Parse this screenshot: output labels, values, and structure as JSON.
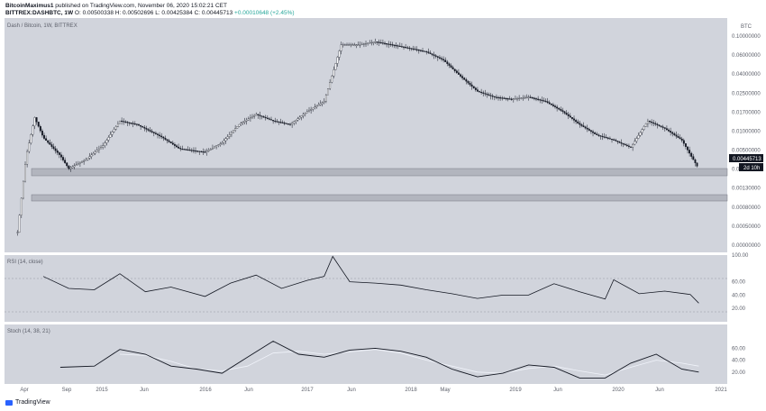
{
  "header": {
    "author": "BitcoinMaximus1",
    "published": "published on TradingView.com, November 06, 2020 15:02:21 CET",
    "symbol": "BITTREX:DASHBTC, 1W",
    "ohlc": "O: 0.00500338 H: 0.00502696 L: 0.00425384 C: 0.00445713",
    "change": "+0.00010648 (+2.45%)"
  },
  "footer": {
    "brand": "TradingView"
  },
  "chart_data": [
    {
      "type": "candlestick",
      "title": "Dash / Bitcoin, 1W, BITTREX",
      "axis_unit": "BTC",
      "scale": "log",
      "price_ticks": [
        "0.10000000",
        "0.06000000",
        "0.04000000",
        "0.02500000",
        "0.01700000",
        "0.01000000",
        "0.00500000",
        "0.00300000",
        "0.00130000",
        "0.00080000",
        "0.00050000",
        "0.00000000"
      ],
      "last_price": "0.00445713",
      "countdown": "2d 10h",
      "support_zones": [
        [
          0.0034,
          0.0039
        ],
        [
          0.0011,
          0.00135
        ]
      ],
      "x_labels": [
        "Apr",
        "Sep",
        "2015",
        "Jun",
        "2016",
        "Jun",
        "2017",
        "Jun",
        "2018",
        "May",
        "2019",
        "Jun",
        "2020",
        "Jun",
        "2021"
      ],
      "close_path": {
        "x": [
          "2014-03",
          "2014-04",
          "2014-05",
          "2014-06",
          "2014-08",
          "2014-09",
          "2014-11",
          "2015-01",
          "2015-03",
          "2015-05",
          "2015-08",
          "2015-10",
          "2016-01",
          "2016-03",
          "2016-05",
          "2016-07",
          "2016-09",
          "2016-11",
          "2017-01",
          "2017-03",
          "2017-05",
          "2017-07",
          "2017-09",
          "2017-11",
          "2018-01",
          "2018-03",
          "2018-05",
          "2018-07",
          "2018-09",
          "2018-11",
          "2019-01",
          "2019-03",
          "2019-05",
          "2019-07",
          "2019-09",
          "2019-11",
          "2020-01",
          "2020-03",
          "2020-05",
          "2020-07",
          "2020-09",
          "2020-11"
        ],
        "y": [
          0.0011,
          0.006,
          0.014,
          0.009,
          0.006,
          0.0045,
          0.0055,
          0.0075,
          0.013,
          0.012,
          0.009,
          0.007,
          0.0065,
          0.008,
          0.012,
          0.015,
          0.013,
          0.012,
          0.016,
          0.02,
          0.07,
          0.07,
          0.075,
          0.07,
          0.065,
          0.06,
          0.05,
          0.035,
          0.025,
          0.022,
          0.021,
          0.022,
          0.02,
          0.016,
          0.012,
          0.0095,
          0.0085,
          0.0072,
          0.013,
          0.011,
          0.0085,
          0.00445713
        ]
      }
    },
    {
      "type": "line",
      "title": "RSI (14, close)",
      "y_ticks": [
        "100.00",
        "60.00",
        "40.00",
        "20.00"
      ],
      "ylim": [
        0,
        100
      ],
      "levels": [
        70,
        30
      ],
      "x": [
        "2014-06",
        "2014-09",
        "2014-12",
        "2015-03",
        "2015-06",
        "2015-09",
        "2016-01",
        "2016-04",
        "2016-07",
        "2016-10",
        "2017-01",
        "2017-03",
        "2017-04",
        "2017-06",
        "2017-09",
        "2017-12",
        "2018-03",
        "2018-06",
        "2018-09",
        "2018-12",
        "2019-03",
        "2019-06",
        "2019-09",
        "2019-12",
        "2020-01",
        "2020-04",
        "2020-07",
        "2020-10",
        "2020-11"
      ],
      "values": [
        68,
        50,
        48,
        72,
        45,
        52,
        38,
        58,
        70,
        50,
        62,
        68,
        98,
        60,
        58,
        55,
        48,
        42,
        35,
        40,
        40,
        57,
        45,
        34,
        63,
        42,
        46,
        41,
        28
      ]
    },
    {
      "type": "line",
      "title": "Stoch (14, 38, 21)",
      "y_ticks": [
        "60.00",
        "40.00",
        "20.00"
      ],
      "ylim": [
        0,
        100
      ],
      "series": [
        {
          "role": "k",
          "x": [
            "2014-08",
            "2014-12",
            "2015-03",
            "2015-06",
            "2015-09",
            "2015-12",
            "2016-03",
            "2016-06",
            "2016-09",
            "2016-12",
            "2017-03",
            "2017-06",
            "2017-09",
            "2017-12",
            "2018-03",
            "2018-06",
            "2018-09",
            "2018-12",
            "2019-03",
            "2019-06",
            "2019-09",
            "2019-12",
            "2020-03",
            "2020-06",
            "2020-09",
            "2020-11"
          ],
          "values": [
            28,
            30,
            58,
            50,
            30,
            25,
            18,
            45,
            72,
            50,
            45,
            57,
            60,
            55,
            45,
            25,
            12,
            18,
            32,
            28,
            10,
            10,
            35,
            50,
            25,
            20
          ]
        },
        {
          "role": "d",
          "x": [
            "2015-03",
            "2015-06",
            "2015-09",
            "2015-12",
            "2016-03",
            "2016-06",
            "2016-09",
            "2016-12",
            "2017-03",
            "2017-06",
            "2017-09",
            "2017-12",
            "2018-03",
            "2018-06",
            "2018-09",
            "2018-12",
            "2019-03",
            "2019-06",
            "2019-09",
            "2019-12",
            "2020-03",
            "2020-06",
            "2020-09",
            "2020-11"
          ],
          "values": [
            50,
            48,
            38,
            25,
            22,
            30,
            52,
            55,
            50,
            54,
            58,
            52,
            40,
            30,
            20,
            18,
            26,
            30,
            22,
            15,
            28,
            40,
            35,
            30
          ]
        }
      ]
    }
  ]
}
